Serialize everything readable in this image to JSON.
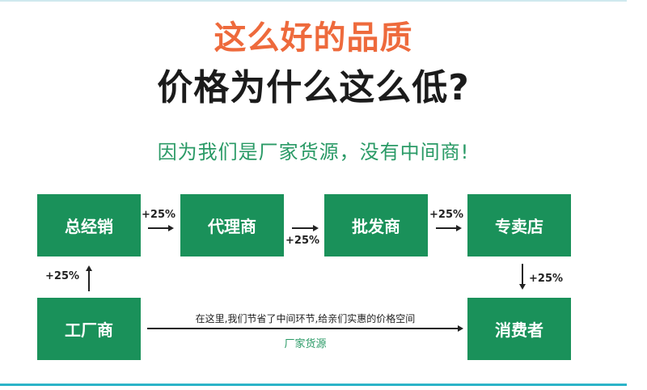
{
  "headline": {
    "line1": "这么好的品质",
    "line2": "价格为什么这么低?",
    "subtitle": "因为我们是厂家货源，没有中间商!"
  },
  "colors": {
    "accent_orange": "#ee6a3c",
    "box_green": "#1a915a",
    "text_green": "#2a9a66",
    "bottom_line": "#2cb4c8"
  },
  "flow": {
    "nodes": [
      "总经销",
      "代理商",
      "批发商",
      "专卖店",
      "工厂商",
      "消费者"
    ],
    "markups": [
      "+25%",
      "+25%",
      "+25%",
      "+25%",
      "+25%"
    ],
    "direct_note": "在这里,我们节省了中间环节,给亲们实惠的价格空间",
    "direct_label": "厂家货源"
  }
}
